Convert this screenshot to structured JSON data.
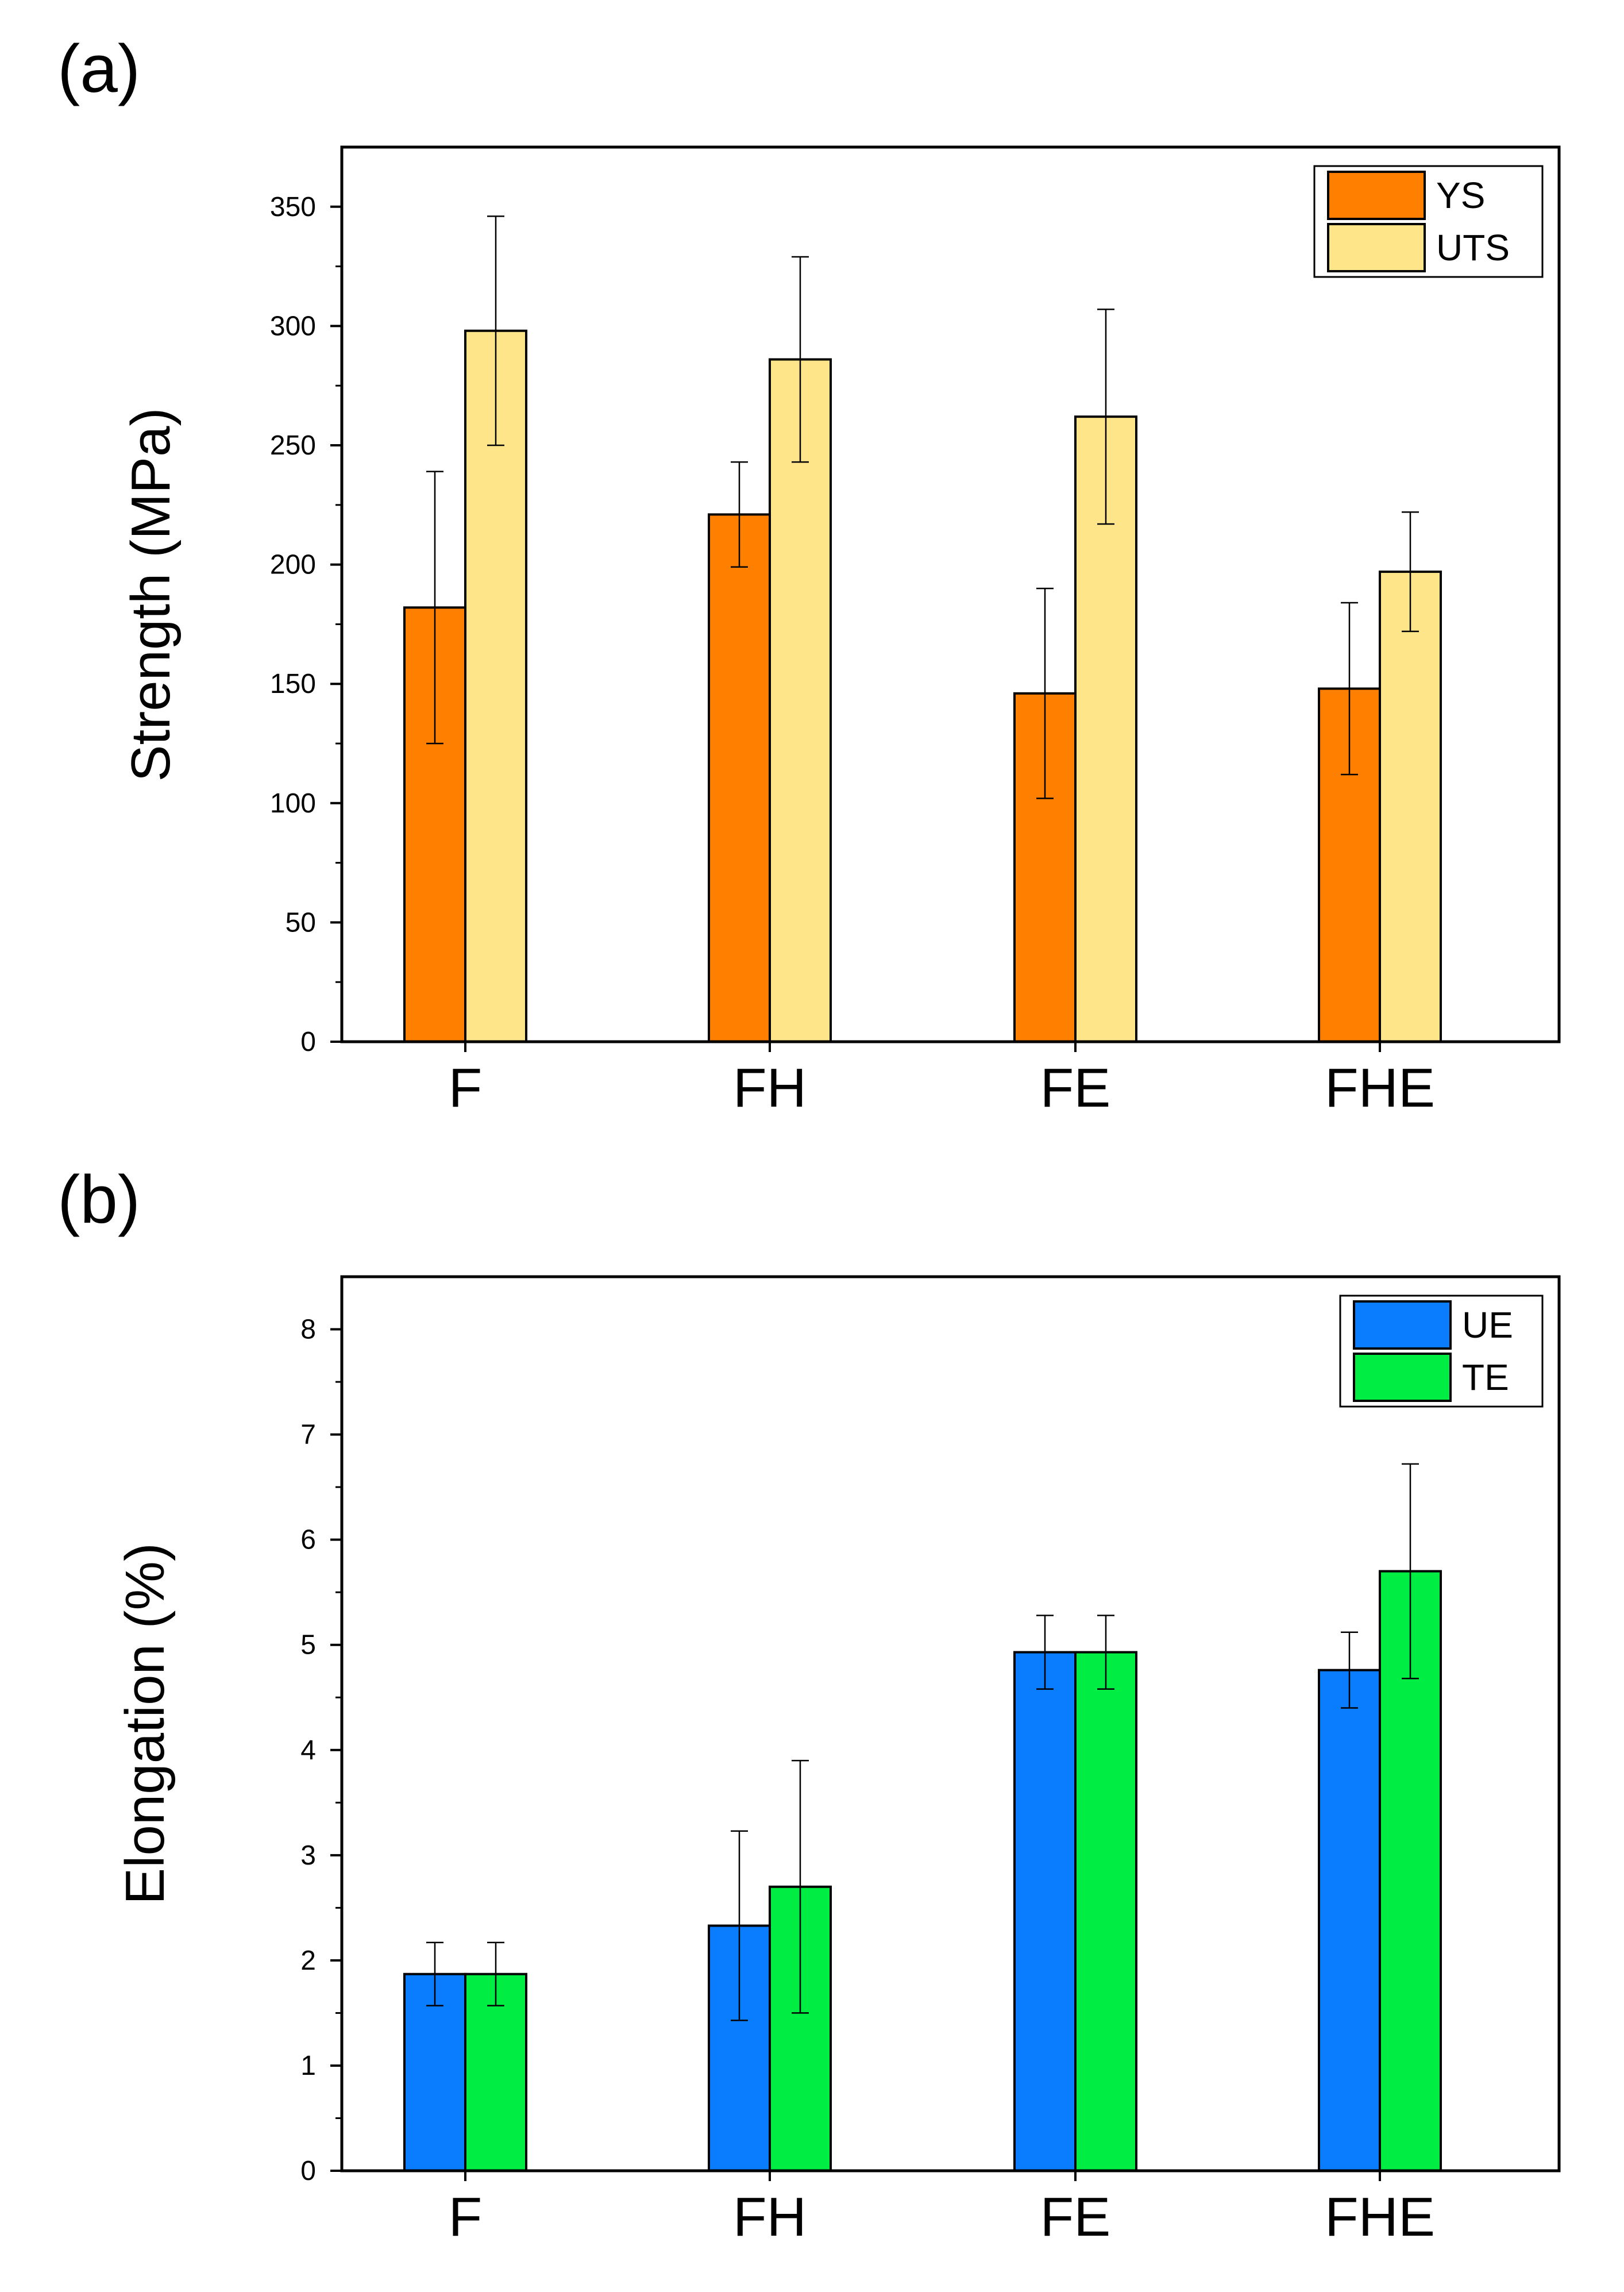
{
  "chart_data": [
    {
      "panel_label": "(a)",
      "type": "bar",
      "categories": [
        "F",
        "FH",
        "FE",
        "FHE"
      ],
      "ylabel": "Strength (MPa)",
      "xlabel": "",
      "ylim": [
        0,
        375
      ],
      "yticks": [
        0,
        50,
        100,
        150,
        200,
        250,
        300,
        350
      ],
      "ytick_labels": [
        "0",
        "50",
        "100",
        "150",
        "200",
        "250",
        "300",
        "350"
      ],
      "legend_position": "top-right",
      "series": [
        {
          "name": "YS",
          "color": "#ff7f00",
          "values": [
            182,
            221,
            146,
            148
          ],
          "errors": [
            57,
            22,
            44,
            36
          ]
        },
        {
          "name": "UTS",
          "color": "#ffe58a",
          "values": [
            298,
            286,
            262,
            197
          ],
          "errors": [
            48,
            43,
            45,
            25
          ]
        }
      ]
    },
    {
      "panel_label": "(b)",
      "type": "bar",
      "categories": [
        "F",
        "FH",
        "FE",
        "FHE"
      ],
      "ylabel": "Elongation (%)",
      "xlabel": "",
      "ylim": [
        0,
        8.5
      ],
      "yticks": [
        0,
        1,
        2,
        3,
        4,
        5,
        6,
        7,
        8
      ],
      "ytick_labels": [
        "0",
        "1",
        "2",
        "3",
        "4",
        "5",
        "6",
        "7",
        "8"
      ],
      "legend_position": "top-right",
      "series": [
        {
          "name": "UE",
          "color": "#0a7dff",
          "values": [
            1.87,
            2.33,
            4.93,
            4.76
          ],
          "errors": [
            0.3,
            0.9,
            0.35,
            0.36
          ]
        },
        {
          "name": "TE",
          "color": "#00ee44",
          "values": [
            1.87,
            2.7,
            4.93,
            5.7
          ],
          "errors": [
            0.3,
            1.2,
            0.35,
            1.02
          ]
        }
      ]
    }
  ]
}
